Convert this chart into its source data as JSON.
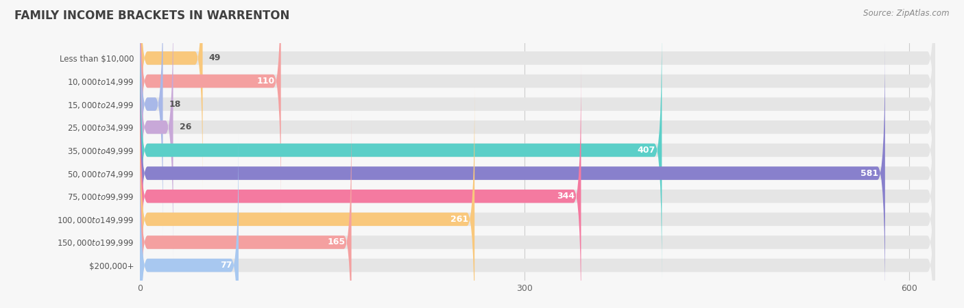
{
  "title": "FAMILY INCOME BRACKETS IN WARRENTON",
  "source": "Source: ZipAtlas.com",
  "categories": [
    "Less than $10,000",
    "$10,000 to $14,999",
    "$15,000 to $24,999",
    "$25,000 to $34,999",
    "$35,000 to $49,999",
    "$50,000 to $74,999",
    "$75,000 to $99,999",
    "$100,000 to $149,999",
    "$150,000 to $199,999",
    "$200,000+"
  ],
  "values": [
    49,
    110,
    18,
    26,
    407,
    581,
    344,
    261,
    165,
    77
  ],
  "bar_colors": [
    "#F9C87C",
    "#F4A0A0",
    "#A8B8E8",
    "#C8A8D8",
    "#5BCFC8",
    "#8880CC",
    "#F47AA0",
    "#F9C87C",
    "#F4A0A0",
    "#A8C8F0"
  ],
  "xlim_max": 620,
  "xticks": [
    0,
    300,
    600
  ],
  "background_color": "#f7f7f7",
  "bar_bg_color": "#e5e5e5",
  "title_color": "#404040",
  "label_color": "#555555",
  "value_color_inside": "#ffffff",
  "value_color_outside": "#555555",
  "inside_threshold": 50
}
